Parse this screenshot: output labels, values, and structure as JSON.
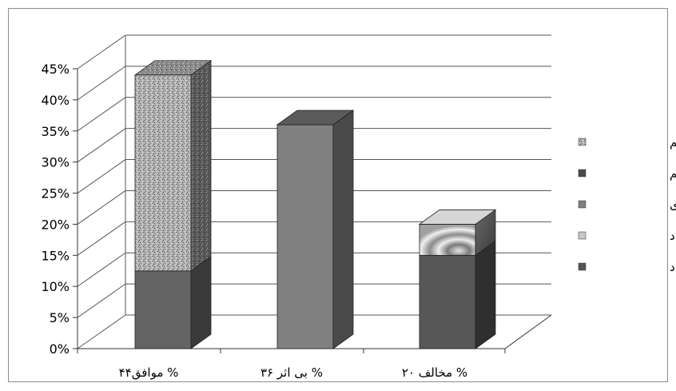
{
  "chart_data": {
    "type": "bar",
    "stacked": true,
    "three_d": true,
    "categories": [
      "موافق۴۴ %",
      "بی اثر ۳۶ %",
      "مخالف ۲۰ %"
    ],
    "y_ticks": [
      "0%",
      "5%",
      "10%",
      "15%",
      "20%",
      "25%",
      "30%",
      "35%",
      "40%",
      "45%"
    ],
    "ylim": [
      0,
      45
    ],
    "grid": true,
    "legend_position": "right",
    "series": [
      {
        "name": "خیلی زیاد",
        "color": "#595959",
        "values": [
          0,
          0,
          15
        ]
      },
      {
        "name": "زیاد",
        "color": "#c0c0c0",
        "values": [
          0,
          0,
          5
        ]
      },
      {
        "name": "ناحدودی",
        "color": "#7f7f7f",
        "values": [
          0,
          36,
          0
        ]
      },
      {
        "name": "کم",
        "color": "#6b6b6b",
        "values": [
          12.5,
          0,
          0
        ]
      },
      {
        "name": "خیلی کم",
        "color": "#a8a8a8",
        "values": [
          31.5,
          0,
          0
        ]
      }
    ],
    "legend_order": [
      "خیلی کم",
      "کم",
      "ناحدودی",
      "زیاد",
      "خیلی زیاد"
    ]
  }
}
